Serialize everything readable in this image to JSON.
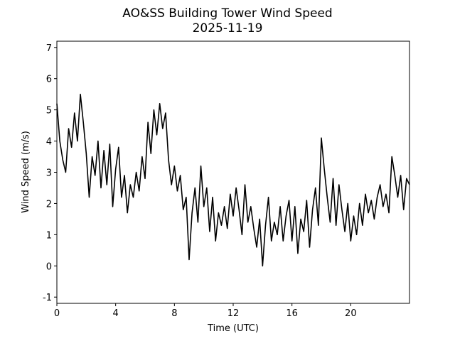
{
  "chart_data": {
    "type": "line",
    "title": "AO&SS Building Tower Wind Speed",
    "subtitle": "2025-11-19",
    "x_label": "Time (UTC)",
    "y_label": "Wind Speed (m/s)",
    "xlim": [
      0,
      24
    ],
    "xticks": [
      0,
      4,
      8,
      12,
      16,
      20
    ],
    "ylim": [
      -1.2,
      7.2
    ],
    "yticks": [
      -1,
      0,
      1,
      2,
      3,
      4,
      5,
      6,
      7
    ],
    "x": [
      0,
      0.2,
      0.4,
      0.6,
      0.8,
      1,
      1.2,
      1.4,
      1.6,
      1.8,
      2,
      2.2,
      2.4,
      2.6,
      2.8,
      3,
      3.2,
      3.4,
      3.6,
      3.8,
      4,
      4.2,
      4.4,
      4.6,
      4.8,
      5,
      5.2,
      5.4,
      5.6,
      5.8,
      6,
      6.2,
      6.4,
      6.6,
      6.8,
      7,
      7.2,
      7.4,
      7.6,
      7.8,
      8,
      8.2,
      8.4,
      8.6,
      8.8,
      9,
      9.2,
      9.4,
      9.6,
      9.8,
      10,
      10.2,
      10.4,
      10.6,
      10.8,
      11,
      11.2,
      11.4,
      11.6,
      11.8,
      12,
      12.2,
      12.4,
      12.6,
      12.8,
      13,
      13.2,
      13.4,
      13.6,
      13.8,
      14,
      14.2,
      14.4,
      14.6,
      14.8,
      15,
      15.2,
      15.4,
      15.6,
      15.8,
      16,
      16.2,
      16.4,
      16.6,
      16.8,
      17,
      17.2,
      17.4,
      17.6,
      17.8,
      18,
      18.2,
      18.4,
      18.6,
      18.8,
      19,
      19.2,
      19.4,
      19.6,
      19.8,
      20,
      20.2,
      20.4,
      20.6,
      20.8,
      21,
      21.2,
      21.4,
      21.6,
      21.8,
      22,
      22.2,
      22.4,
      22.6,
      22.8,
      23,
      23.2,
      23.4,
      23.6,
      23.8,
      24
    ],
    "series": [
      {
        "color": "#000000",
        "values": [
          5.2,
          4.0,
          3.4,
          3.0,
          4.4,
          3.8,
          4.9,
          4.0,
          5.5,
          4.6,
          3.6,
          2.2,
          3.5,
          2.9,
          4.0,
          2.5,
          3.7,
          2.6,
          3.9,
          1.9,
          3.1,
          3.8,
          2.2,
          2.9,
          1.7,
          2.6,
          2.2,
          3.0,
          2.4,
          3.5,
          2.8,
          4.6,
          3.6,
          5.0,
          4.2,
          5.2,
          4.4,
          4.9,
          3.4,
          2.6,
          3.2,
          2.4,
          2.9,
          1.8,
          2.2,
          0.2,
          1.7,
          2.5,
          1.4,
          3.2,
          1.9,
          2.5,
          1.1,
          2.2,
          0.8,
          1.7,
          1.3,
          1.9,
          1.2,
          2.3,
          1.6,
          2.5,
          1.8,
          1.0,
          2.6,
          1.4,
          1.9,
          1.2,
          0.6,
          1.5,
          0.0,
          1.3,
          2.2,
          0.8,
          1.4,
          1.0,
          1.9,
          0.8,
          1.6,
          2.1,
          0.8,
          1.9,
          0.4,
          1.5,
          1.1,
          2.1,
          0.6,
          1.8,
          2.5,
          1.3,
          4.1,
          3.1,
          2.2,
          1.4,
          2.8,
          1.3,
          2.6,
          1.8,
          1.1,
          2.0,
          0.8,
          1.6,
          1.0,
          2.0,
          1.3,
          2.3,
          1.7,
          2.1,
          1.5,
          2.2,
          2.6,
          1.9,
          2.3,
          1.7,
          3.5,
          2.9,
          2.2,
          2.9,
          1.8,
          2.8,
          2.6
        ]
      }
    ]
  }
}
